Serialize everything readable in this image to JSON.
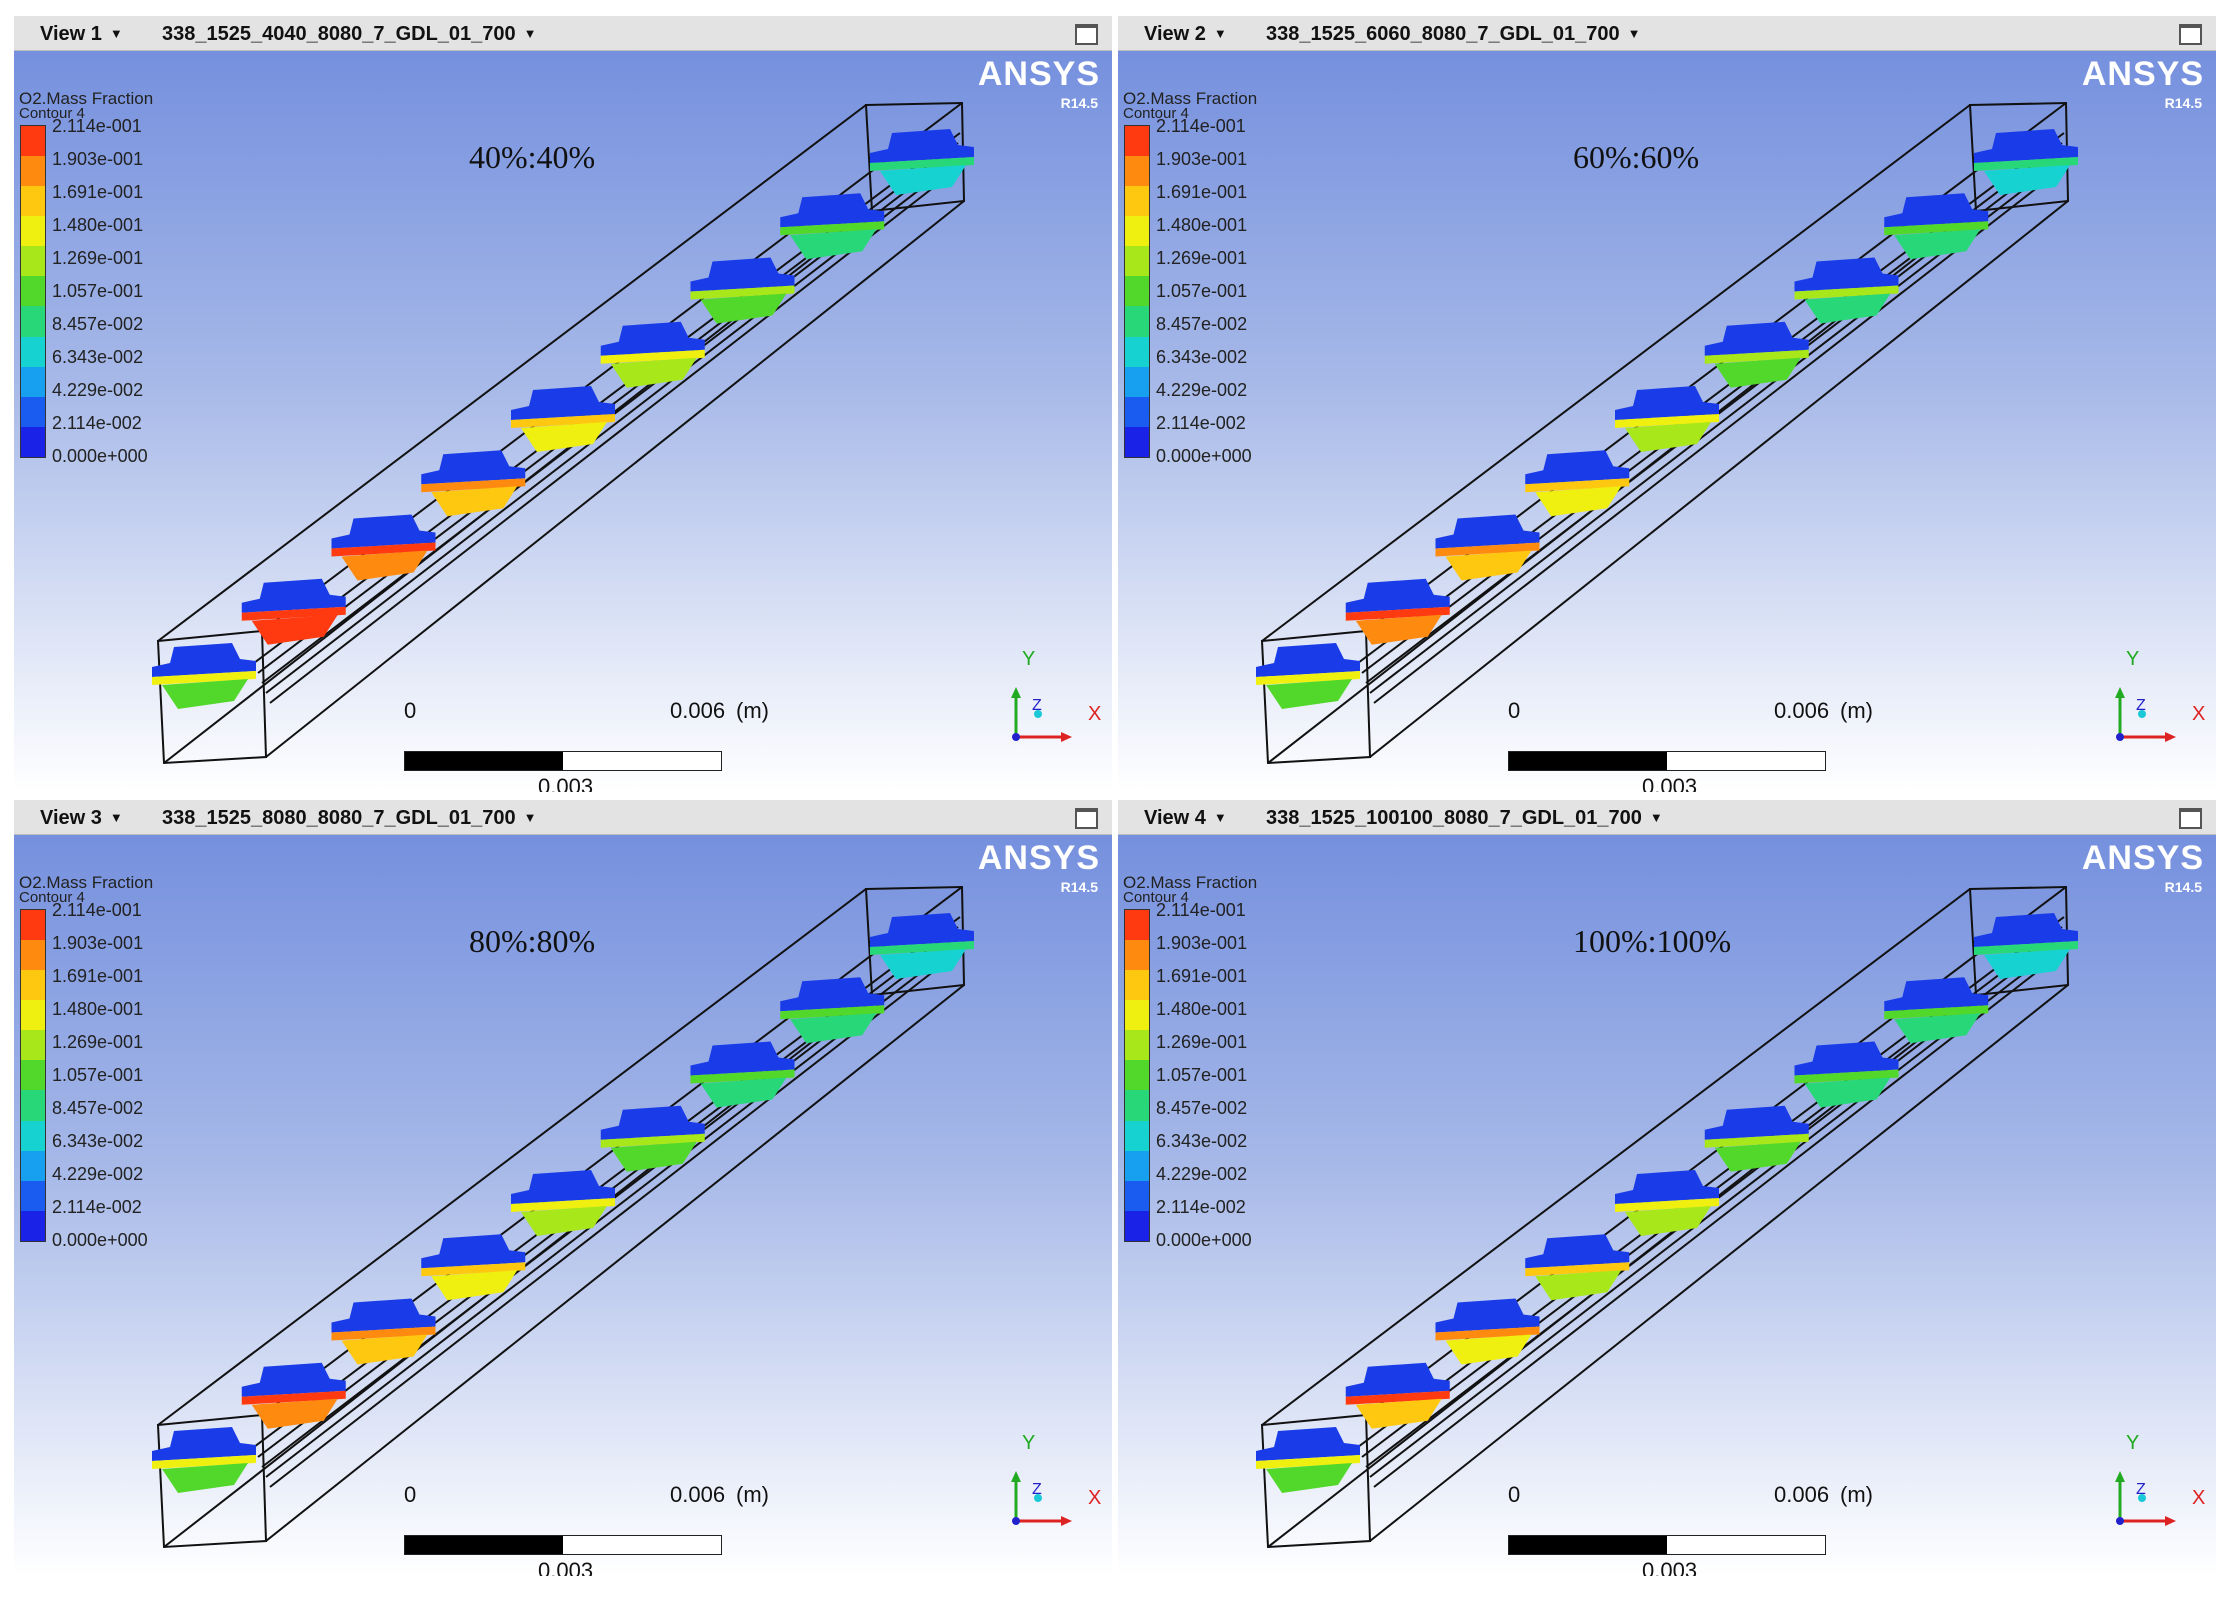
{
  "views": [
    {
      "label": "View 1",
      "case": "338_1525_4040_8080_7_GDL_01_700",
      "ratio": "40%:40%",
      "levels": [
        0.96,
        0.88,
        0.78,
        0.7,
        0.6,
        0.5,
        0.42,
        0.33
      ],
      "inlet": 0.55
    },
    {
      "label": "View 2",
      "case": "338_1525_6060_8080_7_GDL_01_700",
      "ratio": "60%:60%",
      "levels": [
        0.92,
        0.82,
        0.72,
        0.62,
        0.52,
        0.44,
        0.36,
        0.3
      ],
      "inlet": 0.55
    },
    {
      "label": "View 3",
      "case": "338_1525_8080_8080_7_GDL_01_700",
      "ratio": "80%:80%",
      "levels": [
        0.9,
        0.78,
        0.68,
        0.58,
        0.5,
        0.42,
        0.36,
        0.3
      ],
      "inlet": 0.55
    },
    {
      "label": "View 4",
      "case": "338_1525_100100_8080_7_GDL_01_700",
      "ratio": "100%:100%",
      "levels": [
        0.84,
        0.74,
        0.64,
        0.56,
        0.48,
        0.42,
        0.36,
        0.3
      ],
      "inlet": 0.55
    }
  ],
  "legend": {
    "title": "O2.Mass Fraction",
    "subtitle": "Contour 4",
    "ticks": [
      "2.114e-001",
      "1.903e-001",
      "1.691e-001",
      "1.480e-001",
      "1.269e-001",
      "1.057e-001",
      "8.457e-002",
      "6.343e-002",
      "4.229e-002",
      "2.114e-002",
      "0.000e+000"
    ],
    "colors": [
      "#ff3a10",
      "#ff8a10",
      "#ffc810",
      "#f0f010",
      "#a8e81a",
      "#52d82a",
      "#28d878",
      "#16d2d0",
      "#18a0f0",
      "#1a5cf0",
      "#1a22e8"
    ]
  },
  "brand": {
    "name": "ANSYS",
    "version": "R14.5"
  },
  "scale": {
    "left": "0",
    "right": "0.006",
    "unit": "(m)",
    "mid": "0.003"
  },
  "axes": {
    "y": "Y",
    "x": "X",
    "z": "Z"
  }
}
